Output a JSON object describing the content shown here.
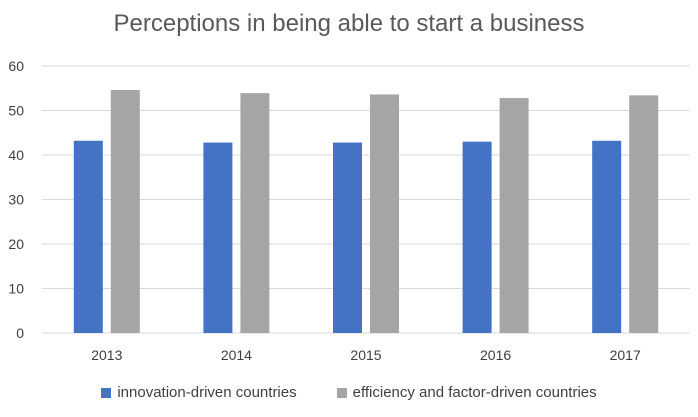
{
  "chart_data": {
    "type": "bar",
    "title": "Perceptions in being able to start a business",
    "categories": [
      "2013",
      "2014",
      "2015",
      "2016",
      "2017"
    ],
    "series": [
      {
        "name": "innovation-driven countries",
        "color": "#4472C4",
        "values": [
          43.2,
          42.8,
          42.8,
          43.0,
          43.2
        ]
      },
      {
        "name": "efficiency and factor-driven countries",
        "color": "#A5A5A5",
        "values": [
          54.6,
          53.9,
          53.6,
          52.8,
          53.4
        ]
      }
    ],
    "ylim": [
      0,
      60
    ],
    "yticks": [
      "0",
      "10",
      "20",
      "30",
      "40",
      "50",
      "60"
    ],
    "grid": true,
    "legend_position": "bottom"
  }
}
